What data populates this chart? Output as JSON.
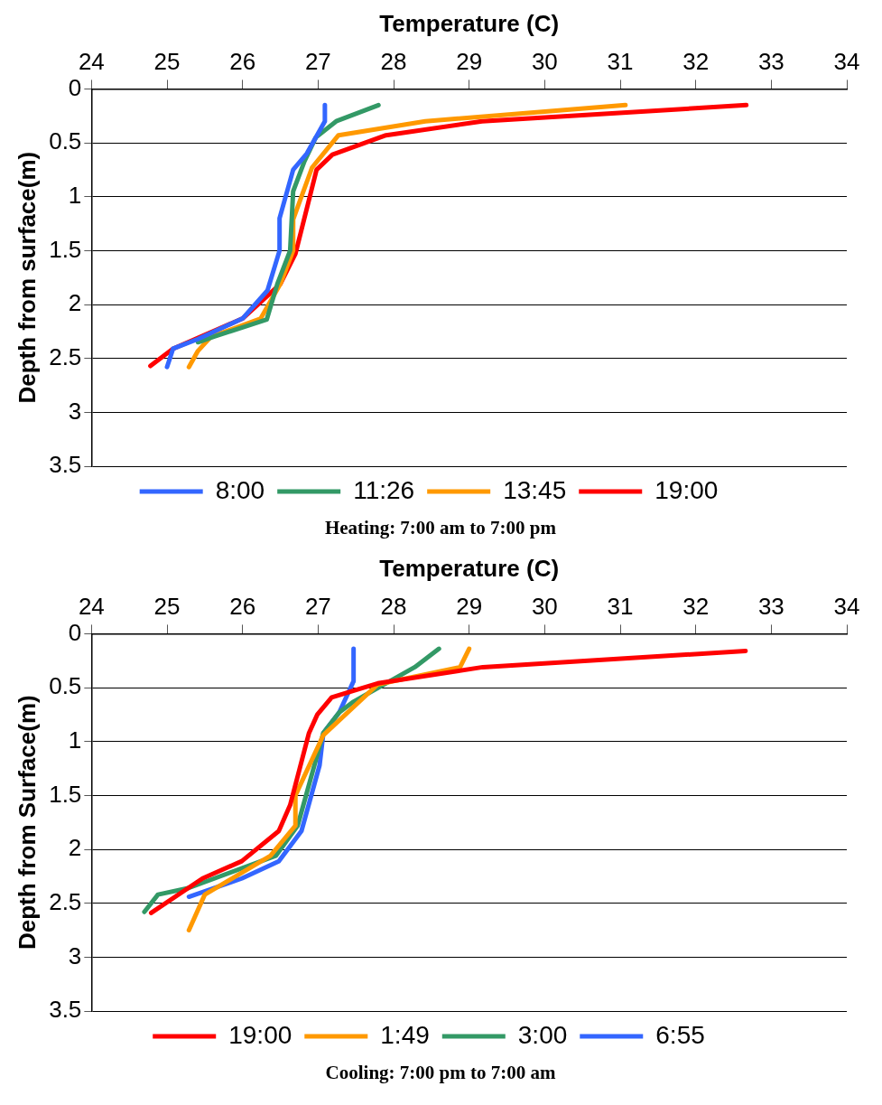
{
  "chart_data": [
    {
      "type": "line",
      "xlabel": "Temperature (C)",
      "ylabel": "Depth from surface(m)",
      "xlim": [
        24,
        34
      ],
      "xticks": [
        24,
        25,
        26,
        27,
        28,
        29,
        30,
        31,
        32,
        33,
        34
      ],
      "ylim": [
        3.5,
        0
      ],
      "yticks": [
        0,
        0.5,
        1,
        1.5,
        2,
        2.5,
        3,
        3.5
      ],
      "grid": "y",
      "legend": "bottom",
      "marker": "none",
      "line_style": "solid",
      "annotations": [
        "Heating: 7:00 am to 7:00 pm"
      ],
      "series": [
        {
          "name": "8:00",
          "color": "#3366ff",
          "x": [
            27.09,
            27.09,
            26.85,
            26.67,
            26.49,
            26.49,
            26.33,
            26.0,
            25.41,
            25.08,
            25.0
          ],
          "values": [
            0.15,
            0.3,
            0.6,
            0.75,
            1.2,
            1.5,
            1.87,
            2.13,
            2.32,
            2.41,
            2.58
          ]
        },
        {
          "name": "11:26",
          "color": "#339966",
          "x": [
            27.8,
            27.24,
            26.97,
            26.82,
            26.67,
            26.63,
            26.46,
            26.32,
            25.61,
            25.41
          ],
          "values": [
            0.15,
            0.3,
            0.45,
            0.67,
            0.95,
            1.5,
            1.81,
            2.14,
            2.3,
            2.35
          ]
        },
        {
          "name": "13:45",
          "color": "#ff9900",
          "x": [
            31.07,
            28.42,
            27.27,
            26.92,
            26.67,
            26.67,
            26.5,
            26.24,
            25.58,
            25.41,
            25.29
          ],
          "values": [
            0.15,
            0.3,
            0.43,
            0.73,
            1.21,
            1.5,
            1.81,
            2.13,
            2.3,
            2.43,
            2.58
          ]
        },
        {
          "name": "19:00",
          "color": "#ff0000",
          "x": [
            32.67,
            29.17,
            27.9,
            27.19,
            26.98,
            26.7,
            26.5,
            26.0,
            25.08,
            24.78
          ],
          "values": [
            0.15,
            0.3,
            0.43,
            0.61,
            0.75,
            1.53,
            1.81,
            2.13,
            2.41,
            2.57
          ]
        }
      ]
    },
    {
      "type": "line",
      "xlabel": "Temperature (C)",
      "ylabel": "Depth from Surface(m)",
      "xlim": [
        24,
        34
      ],
      "xticks": [
        24,
        25,
        26,
        27,
        28,
        29,
        30,
        31,
        32,
        33,
        34
      ],
      "ylim": [
        3.5,
        0
      ],
      "yticks": [
        0,
        0.5,
        1,
        1.5,
        2,
        2.5,
        3,
        3.5
      ],
      "grid": "y",
      "legend": "bottom",
      "marker": "none",
      "line_style": "solid",
      "annotations": [
        "Cooling: 7:00 pm to 7:00 am"
      ],
      "series": [
        {
          "name": "19:00",
          "color": "#ff0000",
          "x": [
            32.66,
            29.18,
            27.79,
            27.18,
            26.99,
            26.88,
            26.63,
            26.48,
            25.99,
            25.47,
            24.79
          ],
          "values": [
            0.16,
            0.31,
            0.46,
            0.59,
            0.75,
            0.92,
            1.59,
            1.83,
            2.11,
            2.27,
            2.59
          ]
        },
        {
          "name": "1:49",
          "color": "#ff9900",
          "x": [
            29.0,
            28.88,
            27.79,
            27.07,
            26.7,
            26.7,
            26.37,
            25.5,
            25.29
          ],
          "values": [
            0.14,
            0.31,
            0.47,
            0.94,
            1.5,
            1.78,
            2.06,
            2.42,
            2.75
          ]
        },
        {
          "name": "3:00",
          "color": "#339966",
          "x": [
            28.6,
            28.28,
            27.47,
            27.28,
            27.07,
            26.73,
            26.44,
            25.28,
            24.88,
            24.7
          ],
          "values": [
            0.14,
            0.31,
            0.63,
            0.73,
            0.92,
            1.78,
            2.06,
            2.36,
            2.42,
            2.58
          ]
        },
        {
          "name": "6:55",
          "color": "#3366ff",
          "x": [
            27.47,
            27.47,
            27.28,
            27.07,
            27.02,
            26.78,
            26.48,
            25.99,
            25.29
          ],
          "values": [
            0.14,
            0.44,
            0.73,
            0.92,
            1.22,
            1.83,
            2.11,
            2.27,
            2.44
          ]
        }
      ]
    }
  ]
}
